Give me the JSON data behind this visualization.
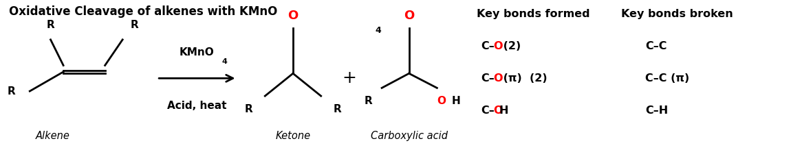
{
  "background": "#ffffff",
  "black": "#000000",
  "red": "#ff0000",
  "title_part1": "Oxidative Cleavage of alkenes with KMnO",
  "title_sub": "4",
  "reagent_line1": "KMnO",
  "reagent_sub": "4",
  "reagent_line2": "Acid, heat",
  "label_alkene": "Alkene",
  "label_ketone": "Ketone",
  "label_carboxylic": "Carboxylic acid",
  "bonds_formed_title": "Key bonds formed",
  "bonds_broken_title": "Key bonds broken",
  "bonds_formed": [
    [
      [
        "C–",
        "#000000"
      ],
      [
        "O",
        "#ff0000"
      ],
      [
        " (2)",
        "#000000"
      ]
    ],
    [
      [
        "C–",
        "#000000"
      ],
      [
        "O",
        "#ff0000"
      ],
      [
        " (π)  (2)",
        "#000000"
      ]
    ],
    [
      [
        "C–",
        "#000000"
      ],
      [
        "O",
        "#ff0000"
      ],
      [
        "H",
        "#000000"
      ]
    ]
  ],
  "bonds_broken": [
    [
      [
        "C–C",
        "#000000"
      ]
    ],
    [
      [
        "C–C (π)",
        "#000000"
      ]
    ],
    [
      [
        "C–H",
        "#000000"
      ]
    ]
  ],
  "figsize": [
    11.66,
    2.38
  ],
  "dpi": 100
}
